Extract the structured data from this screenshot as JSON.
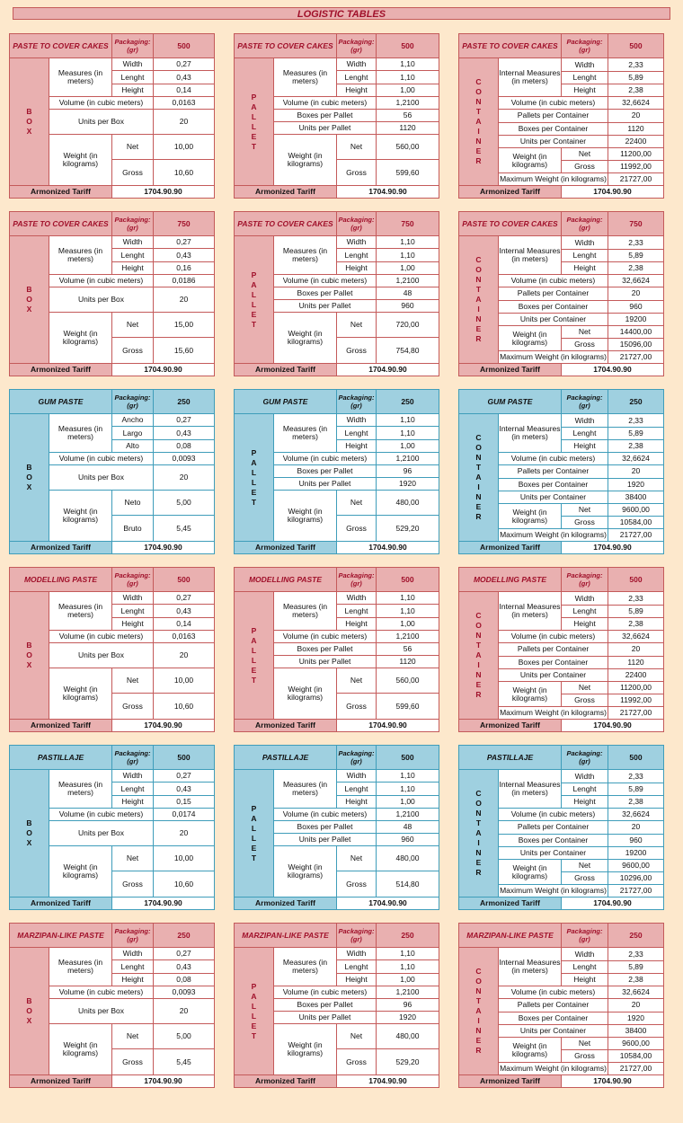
{
  "page_title": "LOGISTIC TABLES",
  "labels": {
    "packaging": "Packaging: (gr)",
    "measures": "Measures (in meters)",
    "internal_measures": "Internal Measures (in meters)",
    "volume": "Volume (in cubic meters)",
    "units_per_box": "Units per Box",
    "boxes_per_pallet": "Boxes per Pallet",
    "units_per_pallet": "Units per Pallet",
    "pallets_per_container": "Pallets per Container",
    "boxes_per_container": "Boxes per Container",
    "units_per_container": "Units per Container",
    "weight": "Weight (in kilograms)",
    "maximum_weight": "Maximum Weight (in kilograms)",
    "armonized_tariff": "Armonized Tariff",
    "tariff_code": "1704.90.90",
    "width": "Width",
    "length": "Lenght",
    "height": "Height",
    "net": "Net",
    "gross": "Gross",
    "box_vertical": "BOX",
    "pallet_vertical": "PALLET",
    "container_vertical": "CONTAINER"
  },
  "colors": {
    "red_header": "#e9b0b0",
    "red_border": "#c45a5a",
    "blue_header": "#9fd0e0",
    "blue_border": "#3f9dba",
    "background": "#fde8cc"
  },
  "groups": [
    {
      "theme": "red",
      "box": {
        "name": "PASTE TO COVER CAKES",
        "packaging": "500",
        "w": "0,27",
        "l": "0,43",
        "h": "0,14",
        "volume": "0,0163",
        "units": "20",
        "net": "10,00",
        "gross": "10,60"
      },
      "pallet": {
        "name": "PASTE TO COVER CAKES",
        "packaging": "500",
        "w": "1,10",
        "l": "1,10",
        "h": "1,00",
        "volume": "1,2100",
        "boxes": "56",
        "units": "1120",
        "net": "560,00",
        "gross": "599,60"
      },
      "container": {
        "name": "PASTE TO COVER CAKES",
        "packaging": "500",
        "w": "2,33",
        "l": "5,89",
        "h": "2,38",
        "volume": "32,6624",
        "pallets": "20",
        "boxes": "1120",
        "units": "22400",
        "net": "11200,00",
        "gross": "11992,00",
        "max": "21727,00"
      }
    },
    {
      "theme": "red",
      "box": {
        "name": "PASTE TO COVER CAKES",
        "packaging": "750",
        "w": "0,27",
        "l": "0,43",
        "h": "0,16",
        "volume": "0,0186",
        "units": "20",
        "net": "15,00",
        "gross": "15,60"
      },
      "pallet": {
        "name": "PASTE TO COVER CAKES",
        "packaging": "750",
        "w": "1,10",
        "l": "1,10",
        "h": "1,00",
        "volume": "1,2100",
        "boxes": "48",
        "units": "960",
        "net": "720,00",
        "gross": "754,80"
      },
      "container": {
        "name": "PASTE TO COVER CAKES",
        "packaging": "750",
        "w": "2,33",
        "l": "5,89",
        "h": "2,38",
        "volume": "32,6624",
        "pallets": "20",
        "boxes": "960",
        "units": "19200",
        "net": "14400,00",
        "gross": "15096,00",
        "max": "21727,00"
      }
    },
    {
      "theme": "blue",
      "box": {
        "name": "GUM PASTE",
        "packaging": "250",
        "wl": "Ancho",
        "ll": "Largo",
        "hl": "Alto",
        "nl": "Neto",
        "gl": "Bruto",
        "w": "0,27",
        "l": "0,43",
        "h": "0,08",
        "volume": "0,0093",
        "units": "20",
        "net": "5,00",
        "gross": "5,45"
      },
      "pallet": {
        "name": "GUM PASTE",
        "packaging": "250",
        "w": "1,10",
        "l": "1,10",
        "h": "1,00",
        "volume": "1,2100",
        "boxes": "96",
        "units": "1920",
        "net": "480,00",
        "gross": "529,20"
      },
      "container": {
        "name": "GUM PASTE",
        "packaging": "250",
        "w": "2,33",
        "l": "5,89",
        "h": "2,38",
        "volume": "32,6624",
        "pallets": "20",
        "boxes": "1920",
        "units": "38400",
        "net": "9600,00",
        "gross": "10584,00",
        "max": "21727,00"
      }
    },
    {
      "theme": "red",
      "box": {
        "name": "MODELLING PASTE",
        "packaging": "500",
        "w": "0,27",
        "l": "0,43",
        "h": "0,14",
        "volume": "0,0163",
        "units": "20",
        "net": "10,00",
        "gross": "10,60"
      },
      "pallet": {
        "name": "MODELLING PASTE",
        "packaging": "500",
        "w": "1,10",
        "l": "1,10",
        "h": "1,00",
        "volume": "1,2100",
        "boxes": "56",
        "units": "1120",
        "net": "560,00",
        "gross": "599,60"
      },
      "container": {
        "name": "MODELLING PASTE",
        "packaging": "500",
        "w": "2,33",
        "l": "5,89",
        "h": "2,38",
        "volume": "32,6624",
        "pallets": "20",
        "boxes": "1120",
        "units": "22400",
        "net": "11200,00",
        "gross": "11992,00",
        "max": "21727,00"
      }
    },
    {
      "theme": "blue",
      "box": {
        "name": "PASTILLAJE",
        "packaging": "500",
        "w": "0,27",
        "l": "0,43",
        "h": "0,15",
        "volume": "0,0174",
        "units": "20",
        "net": "10,00",
        "gross": "10,60"
      },
      "pallet": {
        "name": "PASTILLAJE",
        "packaging": "500",
        "w": "1,10",
        "l": "1,10",
        "h": "1,00",
        "volume": "1,2100",
        "boxes": "48",
        "units": "960",
        "net": "480,00",
        "gross": "514,80"
      },
      "container": {
        "name": "PASTILLAJE",
        "packaging": "500",
        "w": "2,33",
        "l": "5,89",
        "h": "2,38",
        "volume": "32,6624",
        "pallets": "20",
        "boxes": "960",
        "units": "19200",
        "net": "9600,00",
        "gross": "10296,00",
        "max": "21727,00"
      }
    },
    {
      "theme": "red",
      "box": {
        "name": "MARZIPAN-LIKE PASTE",
        "packaging": "250",
        "w": "0,27",
        "l": "0,43",
        "h": "0,08",
        "volume": "0,0093",
        "units": "20",
        "net": "5,00",
        "gross": "5,45"
      },
      "pallet": {
        "name": "MARZIPAN-LIKE PASTE",
        "packaging": "250",
        "w": "1,10",
        "l": "1,10",
        "h": "1,00",
        "volume": "1,2100",
        "boxes": "96",
        "units": "1920",
        "net": "480,00",
        "gross": "529,20"
      },
      "container": {
        "name": "MARZIPAN-LIKE PASTE",
        "packaging": "250",
        "w": "2,33",
        "l": "5,89",
        "h": "2,38",
        "volume": "32,6624",
        "pallets": "20",
        "boxes": "1920",
        "units": "38400",
        "net": "9600,00",
        "gross": "10584,00",
        "max": "21727,00"
      }
    }
  ]
}
